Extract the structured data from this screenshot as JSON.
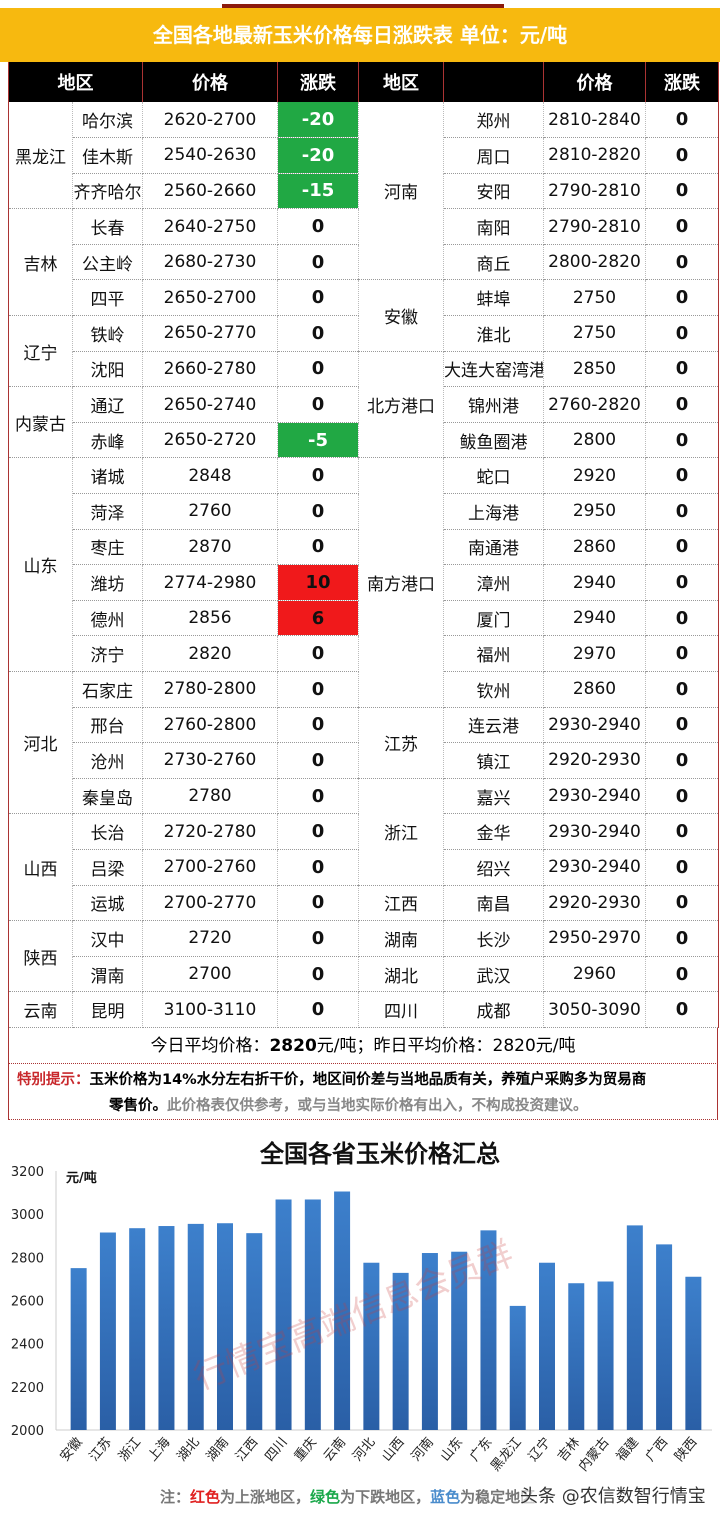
{
  "title": "全国各地最新玉米价格每日涨跌表  单位：元/吨",
  "headers": [
    "地区",
    "价格",
    "涨跌",
    "地区",
    "价格",
    "涨跌"
  ],
  "colors": {
    "down": "#21a844",
    "up": "#f0191b",
    "bar": "#3a78c2",
    "banner": "#f7b90f"
  },
  "left_groups": [
    {
      "region": "黑龙江",
      "rows": [
        [
          "哈尔滨",
          "2620-2700",
          "-20"
        ],
        [
          "佳木斯",
          "2540-2630",
          "-20"
        ],
        [
          "齐齐哈尔",
          "2560-2660",
          "-15"
        ]
      ]
    },
    {
      "region": "吉林",
      "rows": [
        [
          "长春",
          "2640-2750",
          "0"
        ],
        [
          "公主岭",
          "2680-2730",
          "0"
        ],
        [
          "四平",
          "2650-2700",
          "0"
        ]
      ]
    },
    {
      "region": "辽宁",
      "rows": [
        [
          "铁岭",
          "2650-2770",
          "0"
        ],
        [
          "沈阳",
          "2660-2780",
          "0"
        ]
      ]
    },
    {
      "region": "内蒙古",
      "rows": [
        [
          "通辽",
          "2650-2740",
          "0"
        ],
        [
          "赤峰",
          "2650-2720",
          "-5"
        ]
      ]
    },
    {
      "region": "山东",
      "rows": [
        [
          "诸城",
          "2848",
          "0"
        ],
        [
          "菏泽",
          "2760",
          "0"
        ],
        [
          "枣庄",
          "2870",
          "0"
        ],
        [
          "潍坊",
          "2774-2980",
          "10"
        ],
        [
          "德州",
          "2856",
          "6"
        ],
        [
          "济宁",
          "2820",
          "0"
        ]
      ]
    },
    {
      "region": "河北",
      "rows": [
        [
          "石家庄",
          "2780-2800",
          "0"
        ],
        [
          "邢台",
          "2760-2800",
          "0"
        ],
        [
          "沧州",
          "2730-2760",
          "0"
        ],
        [
          "秦皇岛",
          "2780",
          "0"
        ]
      ]
    },
    {
      "region": "山西",
      "rows": [
        [
          "长治",
          "2720-2780",
          "0"
        ],
        [
          "吕梁",
          "2700-2760",
          "0"
        ],
        [
          "运城",
          "2700-2770",
          "0"
        ]
      ]
    },
    {
      "region": "陕西",
      "rows": [
        [
          "汉中",
          "2720",
          "0"
        ],
        [
          "渭南",
          "2700",
          "0"
        ]
      ]
    },
    {
      "region": "云南",
      "rows": [
        [
          "昆明",
          "3100-3110",
          "0"
        ]
      ]
    }
  ],
  "right_groups": [
    {
      "region": "河南",
      "rows": [
        [
          "郑州",
          "2810-2840",
          "0"
        ],
        [
          "周口",
          "2810-2820",
          "0"
        ],
        [
          "安阳",
          "2790-2810",
          "0"
        ],
        [
          "南阳",
          "2790-2810",
          "0"
        ],
        [
          "商丘",
          "2800-2820",
          "0"
        ]
      ]
    },
    {
      "region": "安徽",
      "rows": [
        [
          "蚌埠",
          "2750",
          "0"
        ],
        [
          "淮北",
          "2750",
          "0"
        ]
      ]
    },
    {
      "region": "北方港口",
      "rows": [
        [
          "大连大窑湾港",
          "2850",
          "0"
        ],
        [
          "锦州港",
          "2760-2820",
          "0"
        ],
        [
          "鲅鱼圈港",
          "2800",
          "0"
        ]
      ]
    },
    {
      "region": "南方港口",
      "rows": [
        [
          "蛇口",
          "2920",
          "0"
        ],
        [
          "上海港",
          "2950",
          "0"
        ],
        [
          "南通港",
          "2860",
          "0"
        ],
        [
          "漳州",
          "2940",
          "0"
        ],
        [
          "厦门",
          "2940",
          "0"
        ],
        [
          "福州",
          "2970",
          "0"
        ],
        [
          "钦州",
          "2860",
          "0"
        ]
      ]
    },
    {
      "region": "江苏",
      "rows": [
        [
          "连云港",
          "2930-2940",
          "0"
        ],
        [
          "镇江",
          "2920-2930",
          "0"
        ]
      ]
    },
    {
      "region": "浙江",
      "rows": [
        [
          "嘉兴",
          "2930-2940",
          "0"
        ],
        [
          "金华",
          "2930-2940",
          "0"
        ],
        [
          "绍兴",
          "2930-2940",
          "0"
        ]
      ]
    },
    {
      "region": "江西",
      "rows": [
        [
          "南昌",
          "2920-2930",
          "0"
        ]
      ]
    },
    {
      "region": "湖南",
      "rows": [
        [
          "长沙",
          "2950-2970",
          "0"
        ]
      ]
    },
    {
      "region": "湖北",
      "rows": [
        [
          "武汉",
          "2960",
          "0"
        ]
      ]
    },
    {
      "region": "四川",
      "rows": [
        [
          "成都",
          "3050-3090",
          "0"
        ]
      ]
    }
  ],
  "avg": {
    "today_label": "今日平均价格：",
    "today_value": "2820",
    "unit1": "元/吨；",
    "yesterday_label": "昨日平均价格：",
    "yesterday_value": "2820元/吨"
  },
  "tip": {
    "label": "特别提示：",
    "bold_text": "玉米价格为14%水分左右折干价，地区间价差与当地品质有关，养殖户采购多为贸易商",
    "bold_text2": "零售价。",
    "grey_text": "此价格表仅供参考，或与当地实际价格有出入，不构成投资建议。"
  },
  "chart_data": {
    "type": "bar",
    "title": "全国各省玉米价格汇总",
    "ylabel": "元/吨",
    "ylim": [
      2000,
      3200
    ],
    "yticks": [
      2000,
      2200,
      2400,
      2600,
      2800,
      3000,
      3200
    ],
    "categories": [
      "安徽",
      "江苏",
      "浙江",
      "上海",
      "湖北",
      "湖南",
      "江西",
      "四川",
      "重庆",
      "云南",
      "河北",
      "山西",
      "河南",
      "山东",
      "广东",
      "黑龙江",
      "辽宁",
      "吉林",
      "内蒙古",
      "福建",
      "广西",
      "陕西"
    ],
    "values": [
      2750,
      2915,
      2935,
      2945,
      2955,
      2958,
      2912,
      3068,
      3068,
      3105,
      2775,
      2728,
      2820,
      2826,
      2925,
      2575,
      2775,
      2680,
      2688,
      2948,
      2860,
      2710
    ],
    "grid": false
  },
  "note": {
    "prefix": "注：",
    "red": "红色",
    "red_text": "为上涨地区，",
    "green": "绿色",
    "green_text": "为下跌地区，",
    "blue": "蓝色",
    "blue_text": "为稳定地区"
  },
  "watermarks": {
    "chart": "行情宝高端信息会员群",
    "corner": "头条 @农信数智行情宝"
  }
}
